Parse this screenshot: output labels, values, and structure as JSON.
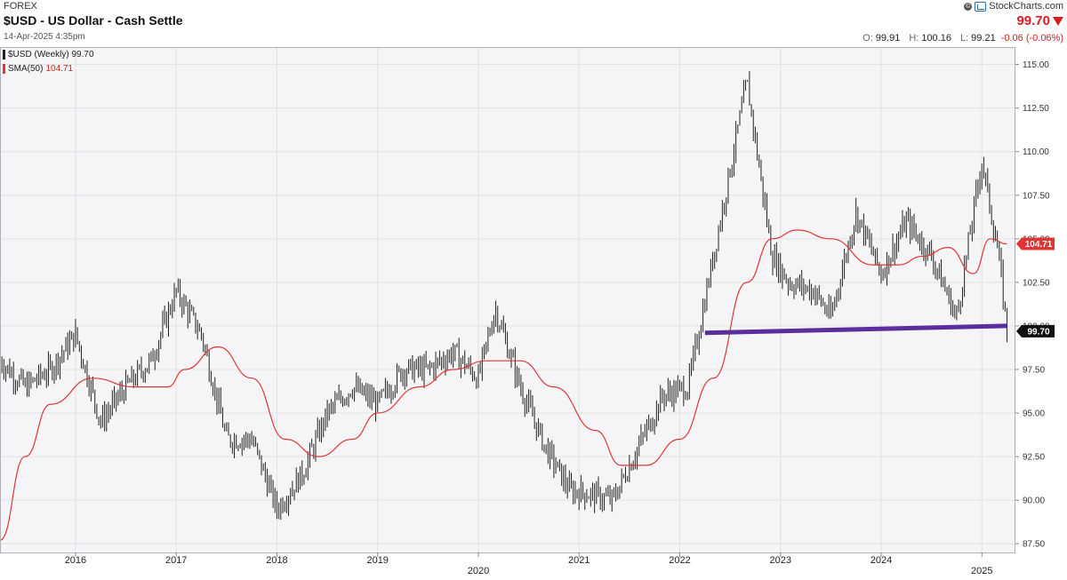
{
  "header": {
    "category": "FOREX",
    "title": "$USD - US Dollar - Cash Settle",
    "date": "14-Apr-2025 4:35pm",
    "brand": "StockCharts.com",
    "price": "99.70",
    "ohlc": {
      "open_label": "O:",
      "open": "99.91",
      "high_label": "H:",
      "high": "100.16",
      "low_label": "L:",
      "low": "99.21",
      "change": "-0.06 (-0.06%)"
    }
  },
  "legend": {
    "series_label": "$USD (Weekly) 99.70",
    "sma_label": "SMA(50)",
    "sma_value": "104.71"
  },
  "colors": {
    "price_bars": "#222222",
    "sma": "#e03535",
    "support_line": "#5b2d9e",
    "price_tag_bg": "#111111",
    "sma_tag_bg": "#e03535",
    "plot_bg": "#f5f5f7",
    "grid": "#e2e2e6"
  },
  "icons": {
    "brand": "stockcharts-logo-icon",
    "change_direction": "down-arrow-icon"
  },
  "chart_data": {
    "type": "line",
    "chart_style": "ohlc-weekly-bars",
    "series": [
      {
        "name": "$USD (Weekly)",
        "x": [
          "2015-04",
          "2015-07",
          "2015-10",
          "2016-01",
          "2016-04",
          "2016-07",
          "2016-10",
          "2017-01",
          "2017-04",
          "2017-07",
          "2017-10",
          "2018-01",
          "2018-04",
          "2018-07",
          "2018-10",
          "2019-01",
          "2019-04",
          "2019-07",
          "2019-10",
          "2020-01",
          "2020-03",
          "2020-06",
          "2020-09",
          "2020-12",
          "2021-01",
          "2021-05",
          "2021-08",
          "2021-11",
          "2022-02",
          "2022-05",
          "2022-09",
          "2022-12",
          "2023-02",
          "2023-05",
          "2023-07",
          "2023-10",
          "2024-01",
          "2024-04",
          "2024-07",
          "2024-10",
          "2025-01",
          "2025-03",
          "2025-04"
        ],
        "values": [
          98.0,
          96.5,
          97.5,
          99.5,
          94.5,
          96.5,
          98.0,
          102.0,
          99.5,
          93.5,
          93.5,
          89.5,
          91.5,
          95.0,
          96.5,
          95.5,
          97.5,
          97.5,
          98.5,
          97.0,
          101.0,
          96.5,
          93.0,
          90.5,
          90.5,
          90.0,
          93.0,
          96.0,
          96.5,
          104.0,
          114.0,
          104.0,
          102.5,
          102.0,
          100.5,
          106.5,
          103.0,
          106.0,
          104.0,
          100.5,
          109.5,
          104.0,
          99.7
        ]
      },
      {
        "name": "SMA(50)",
        "x": [
          "2015-04",
          "2015-07",
          "2015-10",
          "2016-03",
          "2016-08",
          "2016-12",
          "2017-02",
          "2017-06",
          "2017-10",
          "2018-02",
          "2018-06",
          "2018-10",
          "2019-01",
          "2019-06",
          "2019-10",
          "2020-02",
          "2020-06",
          "2020-10",
          "2021-03",
          "2021-06",
          "2021-09",
          "2022-01",
          "2022-05",
          "2022-09",
          "2022-12",
          "2023-03",
          "2023-07",
          "2023-12",
          "2024-03",
          "2024-06",
          "2024-09",
          "2024-12",
          "2025-02",
          "2025-04"
        ],
        "values": [
          87.7,
          92.5,
          95.5,
          97.0,
          96.5,
          96.5,
          97.5,
          98.8,
          97.0,
          93.5,
          92.5,
          93.5,
          95.0,
          96.5,
          97.5,
          98.0,
          98.0,
          96.5,
          94.0,
          92.0,
          92.0,
          93.5,
          97.0,
          102.5,
          105.0,
          105.5,
          105.0,
          103.5,
          103.5,
          104.0,
          104.5,
          103.0,
          105.0,
          104.71
        ]
      }
    ],
    "support_line": {
      "x": [
        "2022-04",
        "2025-04"
      ],
      "y": [
        99.6,
        100.0
      ]
    },
    "title": "$USD - US Dollar - Cash Settle",
    "xlabel": "",
    "ylabel": "",
    "xlim": [
      "2015-04",
      "2025-05"
    ],
    "ylim": [
      87.0,
      116.0
    ],
    "x_tick_labels": [
      "2016",
      "2017",
      "2018",
      "2019",
      "2020",
      "2021",
      "2022",
      "2023",
      "2024",
      "2025"
    ],
    "y_tick_labels": [
      "87.50",
      "90.00",
      "92.50",
      "95.00",
      "97.50",
      "100.00",
      "102.50",
      "105.00",
      "107.50",
      "110.00",
      "112.50",
      "115.00"
    ],
    "y_axis_side": "right",
    "grid": true,
    "legend_position": "top-left",
    "last_price_tag": "99.70",
    "sma_tag": "104.71"
  }
}
